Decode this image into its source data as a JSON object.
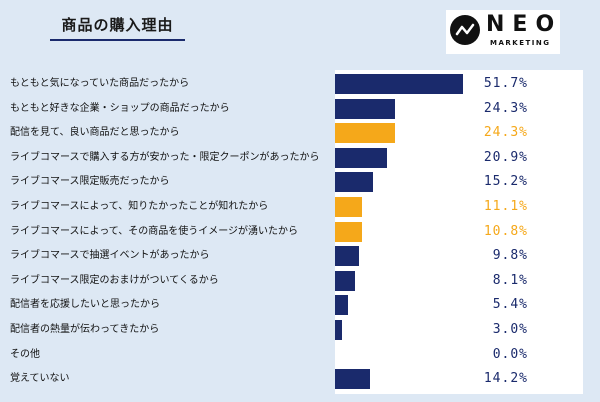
{
  "header": {
    "title": "商品の購入理由"
  },
  "logo": {
    "main": "NEO",
    "sub": "MARKETING"
  },
  "colors": {
    "navy": "#1a2a6c",
    "orange": "#f5a81a",
    "background": "#dde8f4"
  },
  "chart_data": {
    "type": "bar",
    "orientation": "horizontal",
    "title": "商品の購入理由",
    "unit": "%",
    "xlim": [
      0,
      100
    ],
    "categories": [
      "もともと気になっていた商品だったから",
      "もともと好きな企業・ショップの商品だったから",
      "配信を見て、良い商品だと思ったから",
      "ライブコマースで購入する方が安かった・限定クーポンがあったから",
      "ライブコマース限定販売だったから",
      "ライブコマースによって、知りたかったことが知れたから",
      "ライブコマースによって、その商品を使うイメージが湧いたから",
      "ライブコマースで抽選イベントがあったから",
      "ライブコマース限定のおまけがついてくるから",
      "配信者を応援したいと思ったから",
      "配信者の熱量が伝わってきたから",
      "その他",
      "覚えていない"
    ],
    "values": [
      51.7,
      24.3,
      24.3,
      20.9,
      15.2,
      11.1,
      10.8,
      9.8,
      8.1,
      5.4,
      3.0,
      0.0,
      14.2
    ],
    "value_labels": [
      "51.7%",
      "24.3%",
      "24.3%",
      "20.9%",
      "15.2%",
      "11.1%",
      "10.8%",
      "9.8%",
      "8.1%",
      "5.4%",
      "3.0%",
      "0.0%",
      "14.2%"
    ],
    "highlight": [
      false,
      false,
      true,
      false,
      false,
      true,
      true,
      false,
      false,
      false,
      false,
      false,
      false
    ]
  }
}
